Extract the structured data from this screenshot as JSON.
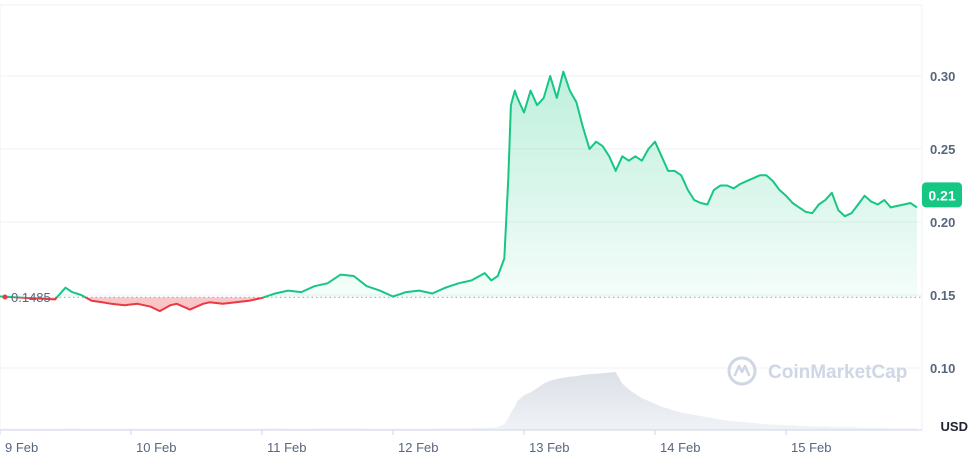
{
  "chart_data": {
    "type": "area",
    "currency": "USD",
    "baseline": 0.1485,
    "baseline_label": "0.1485",
    "current_price": 0.21,
    "current_price_label": "0.21",
    "ylim": [
      0.06,
      0.345
    ],
    "yticks": [
      {
        "value": 0.3,
        "label": "0.30"
      },
      {
        "value": 0.25,
        "label": "0.25"
      },
      {
        "value": 0.2,
        "label": "0.20"
      },
      {
        "value": 0.15,
        "label": "0.15"
      },
      {
        "value": 0.1,
        "label": "0.10"
      }
    ],
    "xlim": [
      9.0,
      16.0
    ],
    "xticks": [
      {
        "value": 9.0,
        "label": "9 Feb"
      },
      {
        "value": 10.0,
        "label": "10 Feb"
      },
      {
        "value": 11.0,
        "label": "11 Feb"
      },
      {
        "value": 12.0,
        "label": "12 Feb"
      },
      {
        "value": 13.0,
        "label": "13 Feb"
      },
      {
        "value": 14.0,
        "label": "14 Feb"
      },
      {
        "value": 15.0,
        "label": "15 Feb"
      }
    ],
    "x": [
      9.0,
      9.42,
      9.5,
      9.55,
      9.62,
      9.7,
      9.78,
      9.85,
      9.95,
      10.05,
      10.15,
      10.22,
      10.3,
      10.35,
      10.45,
      10.55,
      10.6,
      10.7,
      10.8,
      10.9,
      11.0,
      11.1,
      11.2,
      11.3,
      11.4,
      11.5,
      11.6,
      11.7,
      11.8,
      11.9,
      12.0,
      12.1,
      12.2,
      12.3,
      12.4,
      12.5,
      12.6,
      12.7,
      12.75,
      12.8,
      12.85,
      12.88,
      12.9,
      12.93,
      12.95,
      13.0,
      13.05,
      13.1,
      13.15,
      13.2,
      13.25,
      13.3,
      13.35,
      13.4,
      13.45,
      13.5,
      13.55,
      13.6,
      13.65,
      13.7,
      13.75,
      13.8,
      13.85,
      13.9,
      13.95,
      14.0,
      14.05,
      14.1,
      14.15,
      14.2,
      14.25,
      14.3,
      14.35,
      14.4,
      14.45,
      14.5,
      14.55,
      14.6,
      14.65,
      14.7,
      14.75,
      14.8,
      14.85,
      14.9,
      14.95,
      15.0,
      15.05,
      15.1,
      15.15,
      15.2,
      15.25,
      15.3,
      15.35,
      15.4,
      15.45,
      15.5,
      15.55,
      15.6,
      15.65,
      15.7,
      15.75,
      15.8,
      15.85,
      15.9,
      15.95,
      16.0
    ],
    "y": [
      0.149,
      0.147,
      0.155,
      0.152,
      0.15,
      0.146,
      0.145,
      0.144,
      0.143,
      0.144,
      0.142,
      0.139,
      0.143,
      0.144,
      0.14,
      0.144,
      0.145,
      0.144,
      0.145,
      0.146,
      0.148,
      0.151,
      0.153,
      0.152,
      0.156,
      0.158,
      0.164,
      0.163,
      0.156,
      0.153,
      0.149,
      0.152,
      0.153,
      0.151,
      0.155,
      0.158,
      0.16,
      0.165,
      0.16,
      0.163,
      0.175,
      0.23,
      0.28,
      0.29,
      0.285,
      0.275,
      0.29,
      0.28,
      0.285,
      0.3,
      0.285,
      0.303,
      0.29,
      0.282,
      0.265,
      0.25,
      0.255,
      0.252,
      0.245,
      0.235,
      0.245,
      0.242,
      0.245,
      0.242,
      0.25,
      0.255,
      0.245,
      0.235,
      0.235,
      0.232,
      0.222,
      0.215,
      0.213,
      0.212,
      0.222,
      0.225,
      0.225,
      0.223,
      0.226,
      0.228,
      0.23,
      0.232,
      0.232,
      0.228,
      0.222,
      0.218,
      0.213,
      0.21,
      0.207,
      0.206,
      0.212,
      0.215,
      0.22,
      0.208,
      0.204,
      0.206,
      0.212,
      0.218,
      0.214,
      0.212,
      0.215,
      0.21,
      0.211,
      0.212,
      0.213,
      0.21
    ],
    "volume": [
      0.02,
      0.02,
      0.02,
      0.03,
      0.02,
      0.02,
      0.02,
      0.02,
      0.02,
      0.02,
      0.02,
      0.02,
      0.02,
      0.02,
      0.02,
      0.02,
      0.02,
      0.02,
      0.02,
      0.02,
      0.02,
      0.03,
      0.02,
      0.02,
      0.02,
      0.03,
      0.03,
      0.03,
      0.02,
      0.02,
      0.02,
      0.02,
      0.02,
      0.02,
      0.03,
      0.03,
      0.03,
      0.04,
      0.04,
      0.05,
      0.1,
      0.2,
      0.3,
      0.4,
      0.5,
      0.6,
      0.65,
      0.72,
      0.8,
      0.85,
      0.88,
      0.9,
      0.92,
      0.93,
      0.95,
      0.96,
      0.97,
      0.98,
      0.99,
      1.0,
      0.8,
      0.7,
      0.62,
      0.55,
      0.5,
      0.45,
      0.4,
      0.37,
      0.33,
      0.3,
      0.28,
      0.26,
      0.24,
      0.22,
      0.2,
      0.18,
      0.16,
      0.15,
      0.14,
      0.13,
      0.12,
      0.11,
      0.1,
      0.09,
      0.09,
      0.08,
      0.08,
      0.07,
      0.07,
      0.06,
      0.06,
      0.06,
      0.05,
      0.05,
      0.05,
      0.05,
      0.04,
      0.04,
      0.04,
      0.04,
      0.04,
      0.03,
      0.03,
      0.03,
      0.03,
      0.03
    ],
    "colors": {
      "up": "#16c784",
      "down": "#ea3943",
      "grid": "#eff2f5",
      "axis_text": "#58667e",
      "volume": "#e8ebf0"
    },
    "watermark": "CoinMarketCap",
    "grid": true
  }
}
